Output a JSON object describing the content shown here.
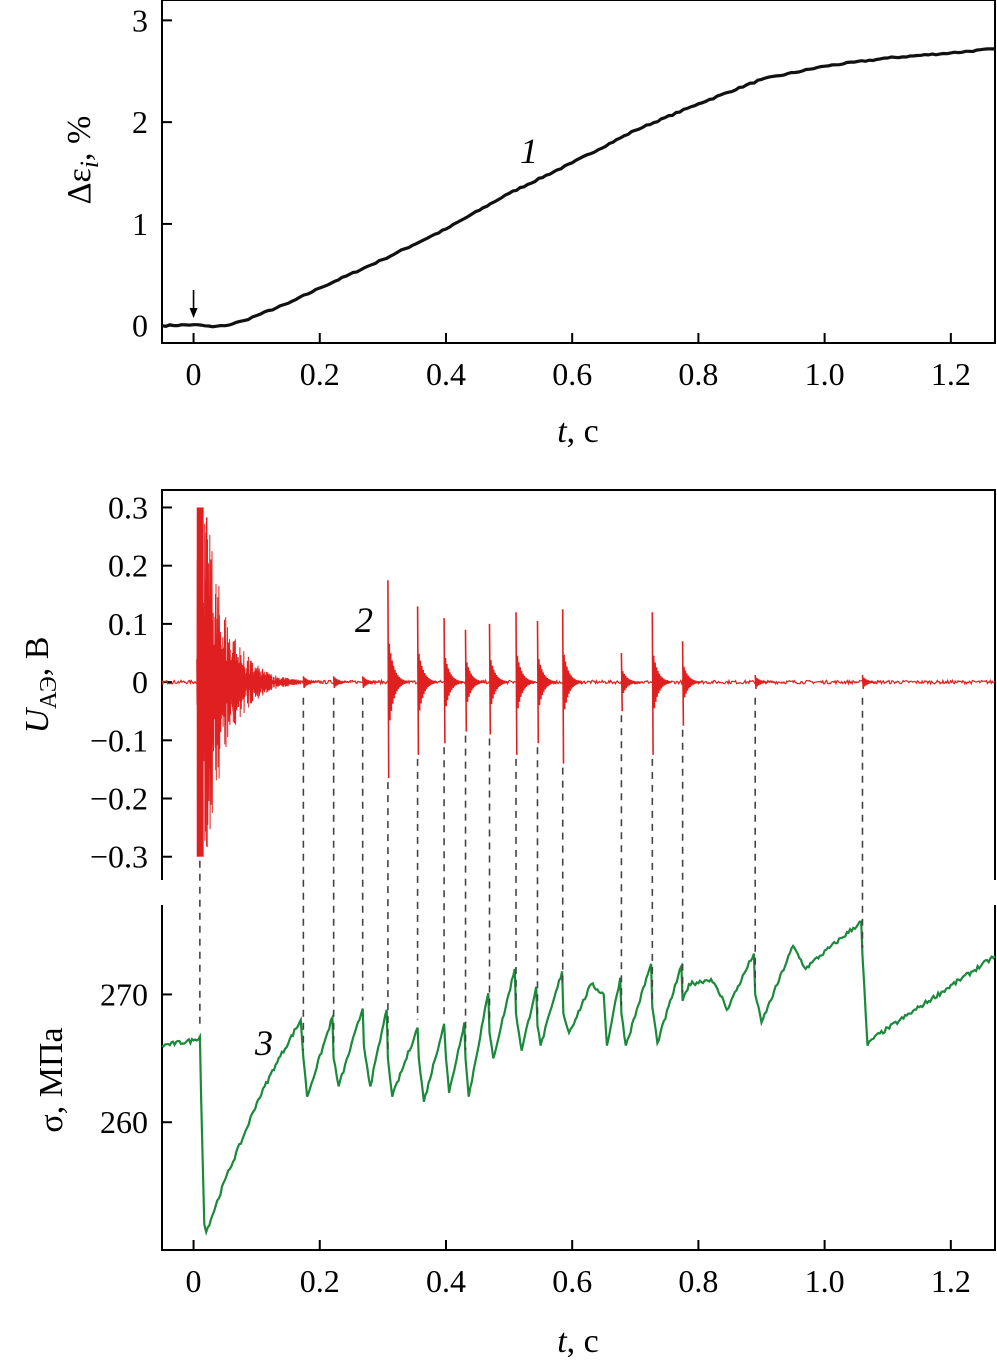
{
  "colors": {
    "strain": "#111111",
    "acoustic": "#e02020",
    "stress": "#1a8a3a",
    "guides": "#444444"
  },
  "chart_data": [
    {
      "id": "strain",
      "type": "line",
      "ylabel": "Δε",
      "ylabel_sub": "i",
      "ylabel_unit": ", %",
      "xlabel_var": "t",
      "xlabel_unit": ", с",
      "xlim": [
        -0.05,
        1.27
      ],
      "ylim": [
        -0.17,
        3.2
      ],
      "x_ticks": [
        "0",
        "0.2",
        "0.4",
        "0.6",
        "0.8",
        "1.0",
        "1.2"
      ],
      "x_tick_values": [
        0,
        0.2,
        0.4,
        0.6,
        0.8,
        1.0,
        1.2
      ],
      "y_ticks": [
        "0",
        "1",
        "2",
        "3"
      ],
      "y_tick_values": [
        0,
        1,
        2,
        3
      ],
      "curve_label": "1",
      "arrow_x": 0.0,
      "series": [
        {
          "x": [
            -0.05,
            0.0,
            0.03,
            0.05,
            0.08,
            0.1,
            0.15,
            0.2,
            0.3,
            0.4,
            0.5,
            0.6,
            0.7,
            0.8,
            0.9,
            1.0,
            1.1,
            1.2,
            1.27
          ],
          "y": [
            0.0,
            0.01,
            -0.01,
            0.0,
            0.05,
            0.1,
            0.22,
            0.37,
            0.65,
            0.95,
            1.3,
            1.6,
            1.92,
            2.18,
            2.42,
            2.55,
            2.63,
            2.68,
            2.72
          ]
        }
      ]
    },
    {
      "id": "acoustic",
      "type": "line",
      "ylabel": "U",
      "ylabel_sub": "АЭ",
      "ylabel_unit": ", В",
      "xlim": [
        -0.05,
        1.27
      ],
      "ylim": [
        -0.34,
        0.33
      ],
      "y_ticks": [
        "0.3",
        "0.2",
        "0.1",
        "0",
        "−0.1",
        "−0.2",
        "−0.3"
      ],
      "y_tick_values": [
        0.3,
        0.2,
        0.1,
        0,
        -0.1,
        -0.2,
        -0.3
      ],
      "curve_label": "2",
      "burst": {
        "x_start": 0.005,
        "x_end": 0.17,
        "amplitude": 0.3
      },
      "spikes": [
        {
          "x": 0.174,
          "up": 0.01,
          "down": -0.01
        },
        {
          "x": 0.222,
          "up": 0.01,
          "down": -0.01
        },
        {
          "x": 0.268,
          "up": 0.01,
          "down": -0.01
        },
        {
          "x": 0.308,
          "up": 0.175,
          "down": -0.165
        },
        {
          "x": 0.355,
          "up": 0.13,
          "down": -0.125
        },
        {
          "x": 0.397,
          "up": 0.11,
          "down": -0.105
        },
        {
          "x": 0.431,
          "up": 0.09,
          "down": -0.085
        },
        {
          "x": 0.469,
          "up": 0.1,
          "down": -0.09
        },
        {
          "x": 0.511,
          "up": 0.12,
          "down": -0.125
        },
        {
          "x": 0.545,
          "up": 0.105,
          "down": -0.105
        },
        {
          "x": 0.585,
          "up": 0.125,
          "down": -0.14
        },
        {
          "x": 0.678,
          "up": 0.05,
          "down": -0.05
        },
        {
          "x": 0.727,
          "up": 0.12,
          "down": -0.125
        },
        {
          "x": 0.775,
          "up": 0.07,
          "down": -0.075
        },
        {
          "x": 0.89,
          "up": 0.012,
          "down": -0.012
        },
        {
          "x": 1.06,
          "up": 0.012,
          "down": -0.012
        }
      ]
    },
    {
      "id": "stress",
      "type": "line",
      "ylabel": "σ",
      "ylabel_unit": ", МПа",
      "xlabel_var": "t",
      "xlabel_unit": ", с",
      "xlim": [
        -0.05,
        1.27
      ],
      "ylim": [
        250,
        277
      ],
      "x_ticks": [
        "0",
        "0.2",
        "0.4",
        "0.6",
        "0.8",
        "1.0",
        "1.2"
      ],
      "x_tick_values": [
        0,
        0.2,
        0.4,
        0.6,
        0.8,
        1.0,
        1.2
      ],
      "y_ticks": [
        "270",
        "260"
      ],
      "y_tick_values": [
        270,
        260
      ],
      "curve_label": "3",
      "series": [
        {
          "x": [
            -0.05,
            0.0,
            0.01,
            0.012,
            0.017,
            0.02,
            0.05,
            0.08,
            0.1,
            0.13,
            0.17,
            0.174,
            0.18,
            0.22,
            0.222,
            0.23,
            0.268,
            0.27,
            0.28,
            0.306,
            0.308,
            0.315,
            0.355,
            0.357,
            0.365,
            0.397,
            0.4,
            0.405,
            0.429,
            0.431,
            0.436,
            0.467,
            0.469,
            0.475,
            0.509,
            0.511,
            0.52,
            0.543,
            0.545,
            0.55,
            0.584,
            0.586,
            0.595,
            0.63,
            0.65,
            0.655,
            0.676,
            0.678,
            0.685,
            0.725,
            0.727,
            0.735,
            0.773,
            0.775,
            0.785,
            0.82,
            0.84,
            0.845,
            0.888,
            0.89,
            0.9,
            0.95,
            0.97,
            0.98,
            1.058,
            1.06,
            1.068,
            1.075,
            1.15,
            1.27
          ],
          "y": [
            266,
            266.4,
            266.7,
            262,
            252,
            251.4,
            255.5,
            259,
            261.5,
            264.5,
            268,
            265,
            262,
            268.2,
            265,
            262.8,
            268.9,
            266,
            262.8,
            268.8,
            265,
            262,
            267.4,
            265,
            261.6,
            267.7,
            265,
            262.3,
            267.8,
            265,
            262,
            270.1,
            267,
            265,
            272,
            268.5,
            265.6,
            270.6,
            267.5,
            266,
            271.8,
            268.5,
            267,
            270.8,
            270,
            266,
            271.3,
            268.5,
            266,
            272.4,
            269,
            266.2,
            272.2,
            269.5,
            270.8,
            271.2,
            269.5,
            268.8,
            273.2,
            270,
            267.8,
            273.8,
            272,
            272.5,
            275.7,
            273,
            266,
            266.5,
            269,
            273
          ]
        }
      ]
    }
  ]
}
